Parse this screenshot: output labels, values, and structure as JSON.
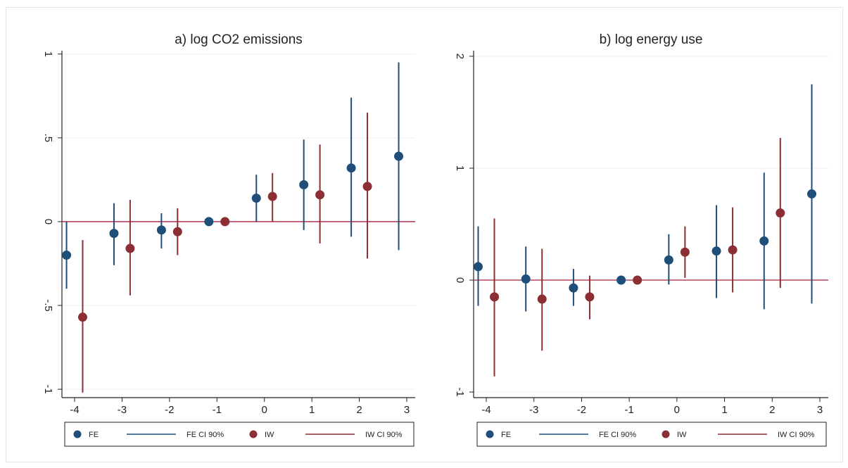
{
  "colors": {
    "fe": "#1f4e79",
    "iw": "#8b2f35",
    "grid": "#eeeeee",
    "zeroline": "#a8203a",
    "axis": "#222222"
  },
  "legend_items": [
    {
      "key": "fe",
      "label": "FE",
      "kind": "marker"
    },
    {
      "key": "fe",
      "label": "FE  CI 90%",
      "kind": "line"
    },
    {
      "key": "iw",
      "label": "IW",
      "kind": "marker"
    },
    {
      "key": "iw",
      "label": "IW  CI 90%",
      "kind": "line"
    }
  ],
  "chart_data": [
    {
      "type": "scatter",
      "title": "a) log CO2 emissions",
      "xlabel": "",
      "ylabel": "",
      "categories": [
        "-4",
        "-3",
        "-2",
        "-1",
        "0",
        "1",
        "2",
        "3"
      ],
      "ylim": [
        -1.05,
        1.02
      ],
      "yticks": [
        {
          "value": -1,
          "label": "-1"
        },
        {
          "value": -0.5,
          "label": "-.5"
        },
        {
          "value": 0,
          "label": "0"
        },
        {
          "value": 0.5,
          "label": ".5"
        },
        {
          "value": 1,
          "label": "1"
        }
      ],
      "grid": true,
      "zero_line": true,
      "legend_position": "bottom",
      "series": [
        {
          "key": "fe",
          "points": [
            {
              "x": "-4",
              "y": -0.2,
              "lo": -0.4,
              "hi": 0.0
            },
            {
              "x": "-3",
              "y": -0.07,
              "lo": -0.26,
              "hi": 0.11
            },
            {
              "x": "-2",
              "y": -0.05,
              "lo": -0.16,
              "hi": 0.05
            },
            {
              "x": "-1",
              "y": 0.0,
              "lo": 0.0,
              "hi": 0.0
            },
            {
              "x": "0",
              "y": 0.14,
              "lo": 0.0,
              "hi": 0.28
            },
            {
              "x": "1",
              "y": 0.22,
              "lo": -0.05,
              "hi": 0.49
            },
            {
              "x": "2",
              "y": 0.32,
              "lo": -0.09,
              "hi": 0.74
            },
            {
              "x": "3",
              "y": 0.39,
              "lo": -0.17,
              "hi": 0.95
            }
          ]
        },
        {
          "key": "iw",
          "points": [
            {
              "x": "-4",
              "y": -0.57,
              "lo": -1.02,
              "hi": -0.11
            },
            {
              "x": "-3",
              "y": -0.16,
              "lo": -0.44,
              "hi": 0.13
            },
            {
              "x": "-2",
              "y": -0.06,
              "lo": -0.2,
              "hi": 0.08
            },
            {
              "x": "-1",
              "y": 0.0,
              "lo": 0.0,
              "hi": 0.0
            },
            {
              "x": "0",
              "y": 0.15,
              "lo": 0.0,
              "hi": 0.29
            },
            {
              "x": "1",
              "y": 0.16,
              "lo": -0.13,
              "hi": 0.46
            },
            {
              "x": "2",
              "y": 0.21,
              "lo": -0.22,
              "hi": 0.65
            }
          ]
        }
      ]
    },
    {
      "type": "scatter",
      "title": "b) log energy use",
      "xlabel": "",
      "ylabel": "",
      "categories": [
        "-4",
        "-3",
        "-2",
        "-1",
        "0",
        "1",
        "2",
        "3"
      ],
      "ylim": [
        -1.05,
        2.05
      ],
      "yticks": [
        {
          "value": -1,
          "label": "-1"
        },
        {
          "value": 0,
          "label": "0"
        },
        {
          "value": 1,
          "label": "1"
        },
        {
          "value": 2,
          "label": "2"
        }
      ],
      "grid": true,
      "zero_line": true,
      "legend_position": "bottom",
      "series": [
        {
          "key": "fe",
          "points": [
            {
              "x": "-4",
              "y": 0.12,
              "lo": -0.23,
              "hi": 0.48
            },
            {
              "x": "-3",
              "y": 0.01,
              "lo": -0.28,
              "hi": 0.3
            },
            {
              "x": "-2",
              "y": -0.07,
              "lo": -0.23,
              "hi": 0.1
            },
            {
              "x": "-1",
              "y": 0.0,
              "lo": 0.0,
              "hi": 0.0
            },
            {
              "x": "0",
              "y": 0.18,
              "lo": -0.04,
              "hi": 0.41
            },
            {
              "x": "1",
              "y": 0.26,
              "lo": -0.16,
              "hi": 0.67
            },
            {
              "x": "2",
              "y": 0.35,
              "lo": -0.26,
              "hi": 0.96
            },
            {
              "x": "3",
              "y": 0.77,
              "lo": -0.21,
              "hi": 1.75
            }
          ]
        },
        {
          "key": "iw",
          "points": [
            {
              "x": "-4",
              "y": -0.15,
              "lo": -0.86,
              "hi": 0.55
            },
            {
              "x": "-3",
              "y": -0.17,
              "lo": -0.63,
              "hi": 0.28
            },
            {
              "x": "-2",
              "y": -0.15,
              "lo": -0.35,
              "hi": 0.04
            },
            {
              "x": "-1",
              "y": 0.0,
              "lo": 0.0,
              "hi": 0.0
            },
            {
              "x": "0",
              "y": 0.25,
              "lo": 0.02,
              "hi": 0.48
            },
            {
              "x": "1",
              "y": 0.27,
              "lo": -0.11,
              "hi": 0.65
            },
            {
              "x": "2",
              "y": 0.6,
              "lo": -0.07,
              "hi": 1.27
            }
          ]
        }
      ]
    }
  ]
}
